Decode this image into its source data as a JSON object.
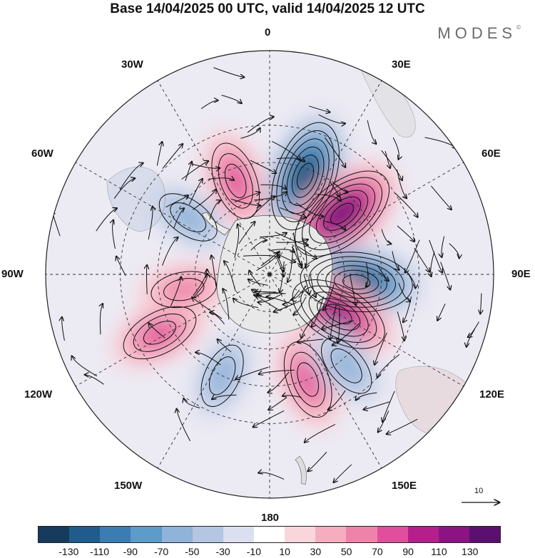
{
  "title": "Base 14/04/2025 00 UTC, valid 14/04/2025 12 UTC",
  "logo": "MODES",
  "logo_mark": "©",
  "longitude_labels": {
    "lon_0": "0",
    "lon_30e": "30E",
    "lon_60e": "60E",
    "lon_90e": "90E",
    "lon_120e": "120E",
    "lon_150e": "150E",
    "lon_180": "180",
    "lon_150w": "150W",
    "lon_120w": "120W",
    "lon_90w": "90W",
    "lon_60w": "60W",
    "lon_30w": "30W"
  },
  "reference_vector_label": "10",
  "colorbar": {
    "colors": [
      "#163b5c",
      "#1f5c8c",
      "#3b7db3",
      "#5d9bc8",
      "#8fb3d9",
      "#b4c6e2",
      "#dcdfef",
      "#ffffff",
      "#f9d6db",
      "#f5aebf",
      "#ee83aa",
      "#df4f9c",
      "#b51f8c",
      "#8b1482",
      "#5b1070"
    ],
    "tick_labels": [
      "-130",
      "-110",
      "-90",
      "-70",
      "-50",
      "-30",
      "-10",
      "10",
      "30",
      "50",
      "70",
      "90",
      "110",
      "130"
    ]
  },
  "anomalies": [
    {
      "lon": 20,
      "lat": -48,
      "value": -130
    },
    {
      "lon": 50,
      "lat": -52,
      "value": 130
    },
    {
      "lon": 95,
      "lat": -55,
      "value": -130
    },
    {
      "lon": 120,
      "lat": -58,
      "value": 110
    },
    {
      "lon": 160,
      "lat": -45,
      "value": 70
    },
    {
      "lon": -155,
      "lat": -45,
      "value": -50
    },
    {
      "lon": -118,
      "lat": -40,
      "value": 70
    },
    {
      "lon": -100,
      "lat": -55,
      "value": 50
    },
    {
      "lon": -55,
      "lat": -50,
      "value": -50
    },
    {
      "lon": -20,
      "lat": -50,
      "value": 70
    },
    {
      "lon": 140,
      "lat": -42,
      "value": -50
    }
  ]
}
